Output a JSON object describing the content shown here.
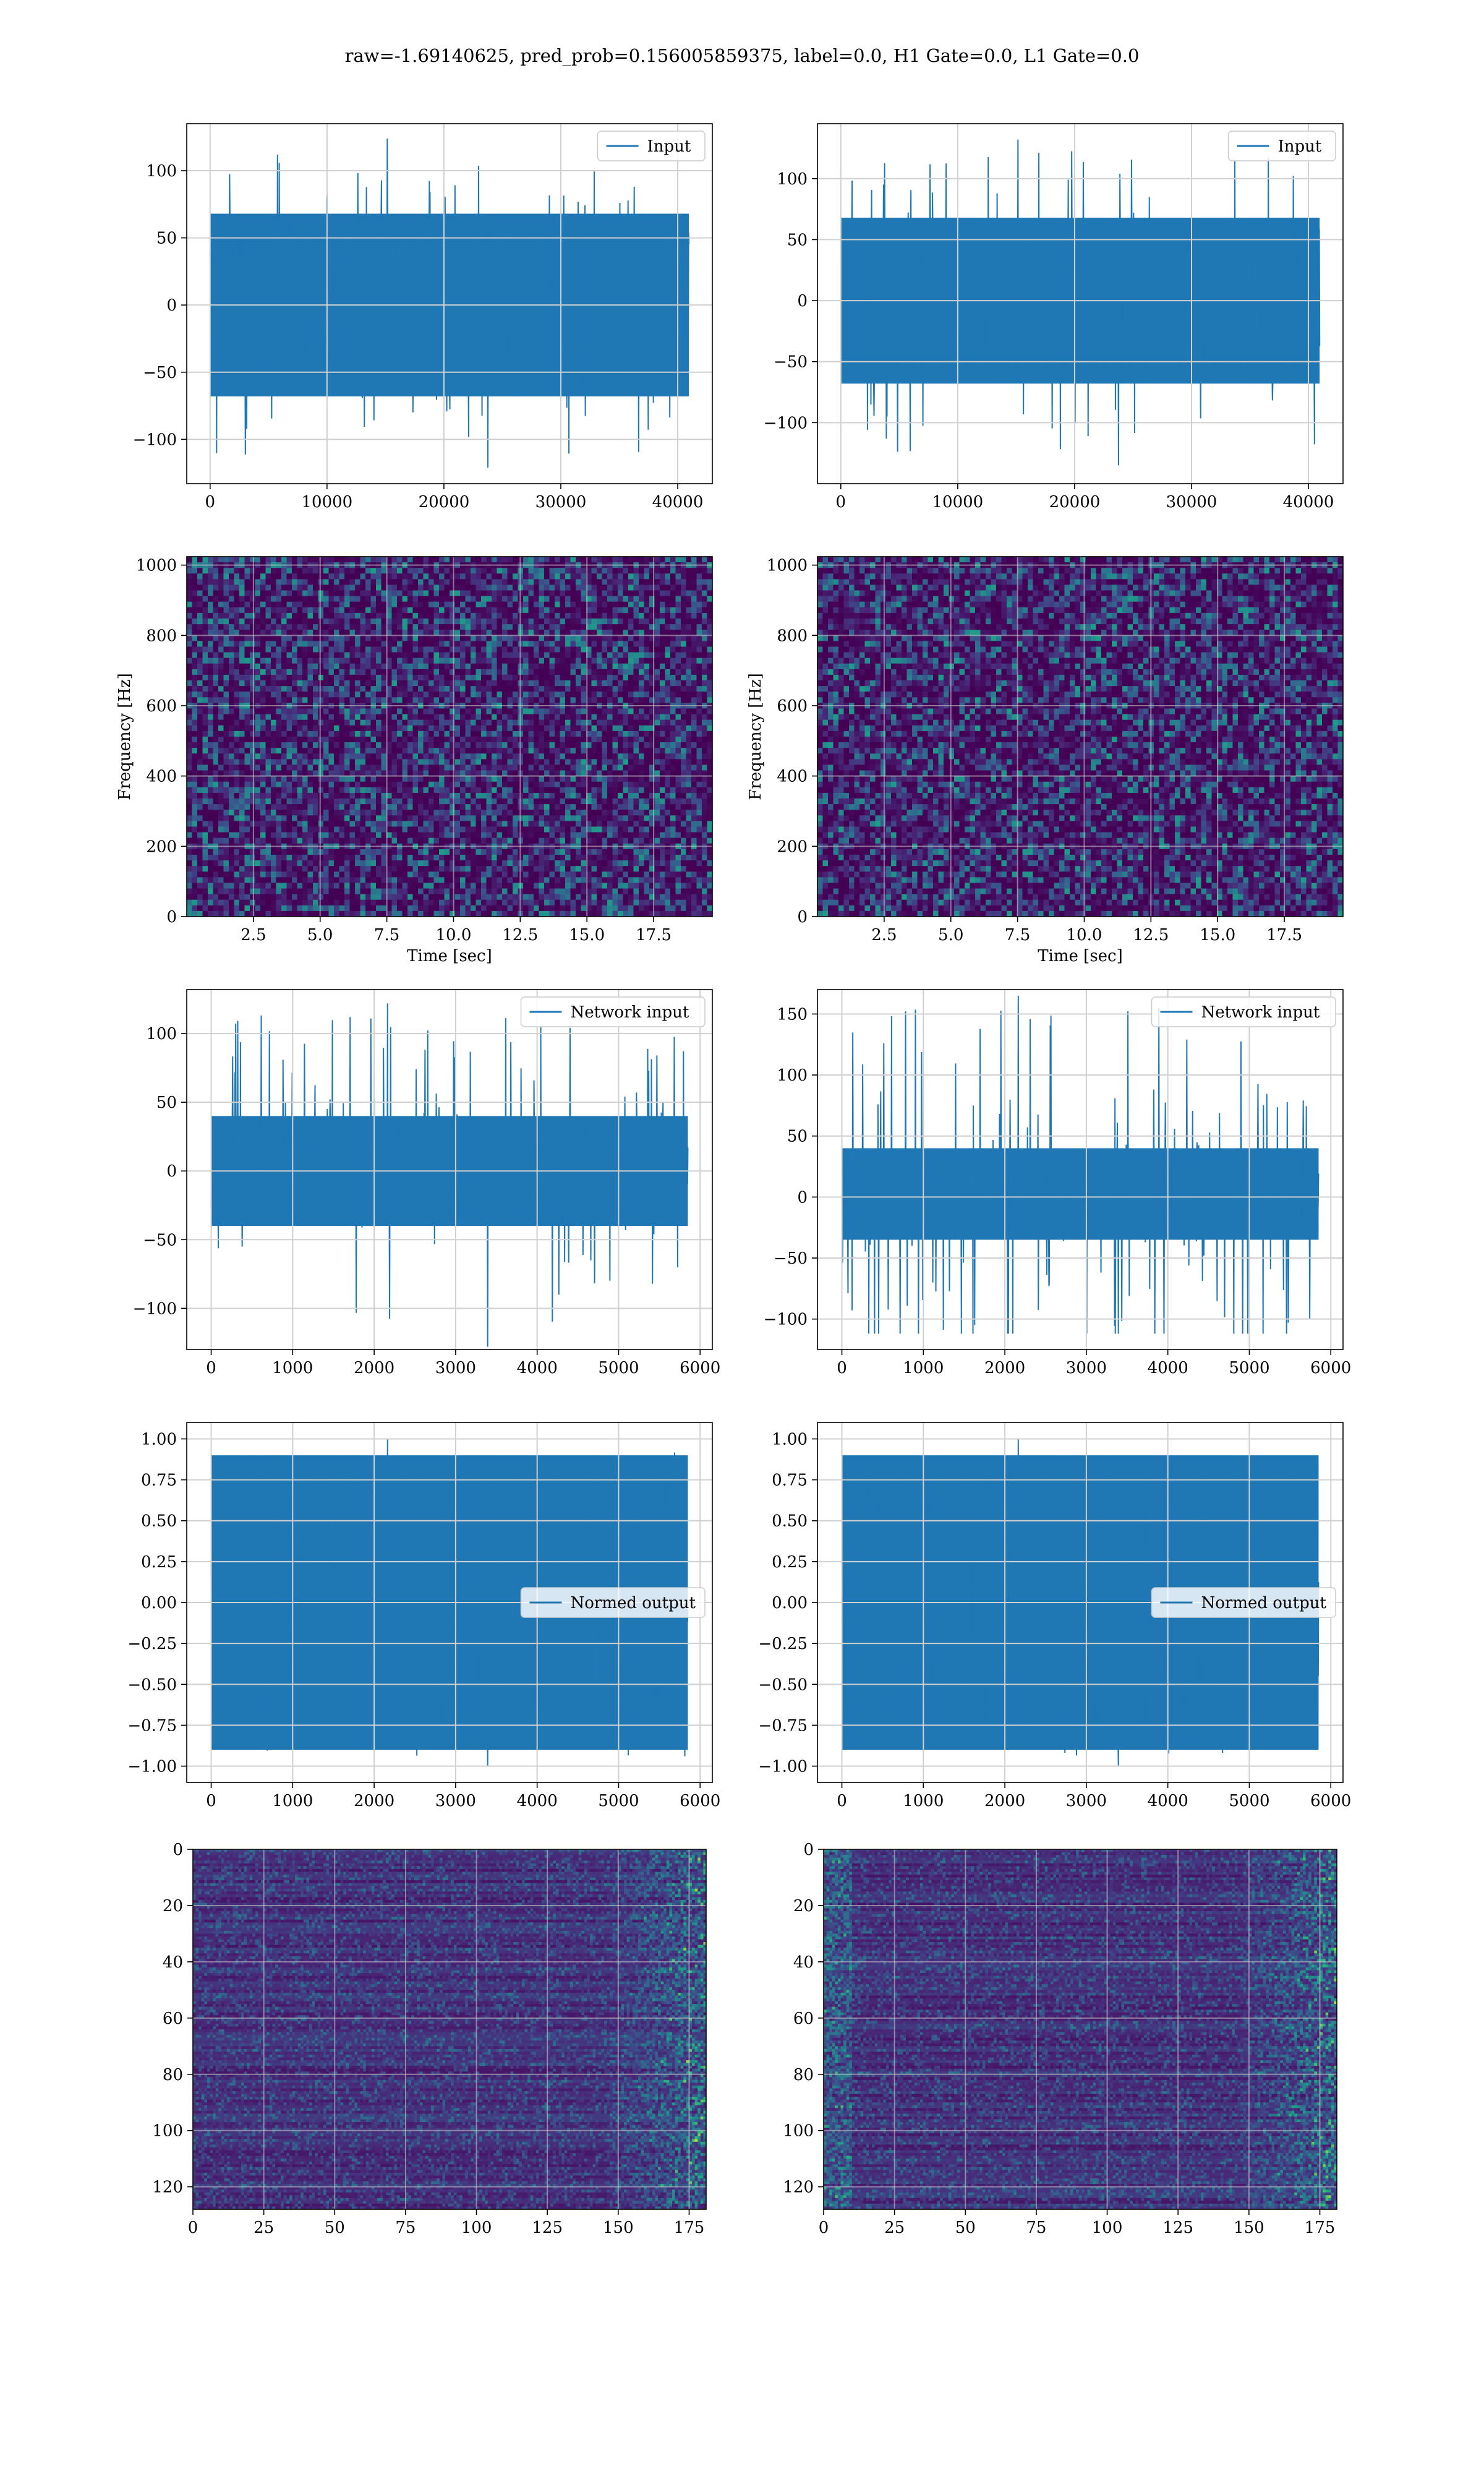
{
  "figure": {
    "title": "raw=-1.69140625, pred_prob=0.156005859375, label=0.0, H1 Gate=0.0, L1 Gate=0.0"
  },
  "colors": {
    "line": "#1f77b4",
    "grid": "#d0d0d0",
    "heatmap_low": "#440154",
    "heatmap_mid": "#21918c",
    "heatmap_high": "#fde725"
  },
  "chart_data": [
    {
      "id": "h1-input",
      "type": "line",
      "legend": "Input",
      "legend_loc": "upper right",
      "xlim": [
        -2000,
        42960
      ],
      "ylim": [
        -133,
        135
      ],
      "xticks": [
        0,
        10000,
        20000,
        30000,
        40000
      ],
      "yticks": [
        -100,
        -50,
        0,
        50,
        100
      ],
      "xlabel": "",
      "ylabel": "",
      "series": [
        {
          "x_range": [
            0,
            40960
          ],
          "band": [
            -68,
            68
          ],
          "extreme_max": 124,
          "extreme_min": -121
        }
      ]
    },
    {
      "id": "l1-input",
      "type": "line",
      "legend": "Input",
      "legend_loc": "upper right",
      "xlim": [
        -2000,
        42960
      ],
      "ylim": [
        -150,
        145
      ],
      "xticks": [
        0,
        10000,
        20000,
        30000,
        40000
      ],
      "yticks": [
        -100,
        -50,
        0,
        50,
        100
      ],
      "xlabel": "",
      "ylabel": "",
      "series": [
        {
          "x_range": [
            0,
            40960
          ],
          "band": [
            -68,
            68
          ],
          "extreme_max": 132,
          "extreme_min": -135
        }
      ]
    },
    {
      "id": "h1-spectrogram",
      "type": "heatmap",
      "xlim": [
        0,
        19.7
      ],
      "ylim": [
        0,
        1024
      ],
      "xticks": [
        2.5,
        5.0,
        7.5,
        10.0,
        12.5,
        15.0,
        17.5
      ],
      "yticks": [
        0,
        200,
        400,
        600,
        800,
        1000
      ],
      "xlabel": "Time [sec]",
      "ylabel": "Frequency [Hz]"
    },
    {
      "id": "l1-spectrogram",
      "type": "heatmap",
      "xlim": [
        0,
        19.7
      ],
      "ylim": [
        0,
        1024
      ],
      "xticks": [
        2.5,
        5.0,
        7.5,
        10.0,
        12.5,
        15.0,
        17.5
      ],
      "yticks": [
        0,
        200,
        400,
        600,
        800,
        1000
      ],
      "xlabel": "Time [sec]",
      "ylabel": "Frequency [Hz]"
    },
    {
      "id": "h1-network-input",
      "type": "line",
      "legend": "Network input",
      "legend_loc": "upper right",
      "xlim": [
        -300,
        6150
      ],
      "ylim": [
        -130,
        132
      ],
      "xticks": [
        0,
        1000,
        2000,
        3000,
        4000,
        5000,
        6000
      ],
      "yticks": [
        -100,
        -50,
        0,
        50,
        100
      ],
      "xlabel": "",
      "ylabel": "",
      "series": [
        {
          "x_range": [
            0,
            5850
          ],
          "band": [
            -40,
            40
          ],
          "extreme_max": 122,
          "extreme_min": -128
        }
      ]
    },
    {
      "id": "l1-network-input",
      "type": "line",
      "legend": "Network input",
      "legend_loc": "upper right",
      "xlim": [
        -300,
        6150
      ],
      "ylim": [
        -125,
        170
      ],
      "xticks": [
        0,
        1000,
        2000,
        3000,
        4000,
        5000,
        6000
      ],
      "yticks": [
        -100,
        -50,
        0,
        50,
        100,
        150
      ],
      "xlabel": "",
      "ylabel": "",
      "series": [
        {
          "x_range": [
            0,
            5850
          ],
          "band": [
            -35,
            40
          ],
          "extreme_max": 165,
          "extreme_min": -112
        }
      ]
    },
    {
      "id": "h1-normed-output",
      "type": "line",
      "legend": "Normed output",
      "legend_loc": "center right",
      "xlim": [
        -300,
        6150
      ],
      "ylim": [
        -1.1,
        1.1
      ],
      "xticks": [
        0,
        1000,
        2000,
        3000,
        4000,
        5000,
        6000
      ],
      "yticks": [
        -1.0,
        -0.75,
        -0.5,
        -0.25,
        0.0,
        0.25,
        0.5,
        0.75,
        1.0
      ],
      "ytick_labels": [
        "−1.00",
        "−0.75",
        "−0.50",
        "−0.25",
        "0.00",
        "0.25",
        "0.50",
        "0.75",
        "1.00"
      ],
      "xlabel": "",
      "ylabel": "",
      "series": [
        {
          "x_range": [
            0,
            5850
          ],
          "band": [
            -0.9,
            0.9
          ],
          "extreme_max": 1.0,
          "extreme_min": -1.0
        }
      ]
    },
    {
      "id": "l1-normed-output",
      "type": "line",
      "legend": "Normed output",
      "legend_loc": "center right",
      "xlim": [
        -300,
        6150
      ],
      "ylim": [
        -1.1,
        1.1
      ],
      "xticks": [
        0,
        1000,
        2000,
        3000,
        4000,
        5000,
        6000
      ],
      "yticks": [
        -1.0,
        -0.75,
        -0.5,
        -0.25,
        0.0,
        0.25,
        0.5,
        0.75,
        1.0
      ],
      "ytick_labels": [
        "−1.00",
        "−0.75",
        "−0.50",
        "−0.25",
        "0.00",
        "0.25",
        "0.50",
        "0.75",
        "1.00"
      ],
      "xlabel": "",
      "ylabel": "",
      "series": [
        {
          "x_range": [
            0,
            5850
          ],
          "band": [
            -0.9,
            0.9
          ],
          "extreme_max": 1.0,
          "extreme_min": -1.0
        }
      ]
    },
    {
      "id": "h1-feature-map",
      "type": "heatmap",
      "xlim": [
        0,
        181
      ],
      "ylim": [
        128,
        0
      ],
      "xticks": [
        0,
        25,
        50,
        75,
        100,
        125,
        150,
        175
      ],
      "yticks": [
        0,
        20,
        40,
        60,
        80,
        100,
        120
      ],
      "xlabel": "",
      "ylabel": ""
    },
    {
      "id": "l1-feature-map",
      "type": "heatmap",
      "xlim": [
        0,
        181
      ],
      "ylim": [
        128,
        0
      ],
      "xticks": [
        0,
        25,
        50,
        75,
        100,
        125,
        150,
        175
      ],
      "yticks": [
        0,
        20,
        40,
        60,
        80,
        100,
        120
      ],
      "xlabel": "",
      "ylabel": ""
    }
  ]
}
